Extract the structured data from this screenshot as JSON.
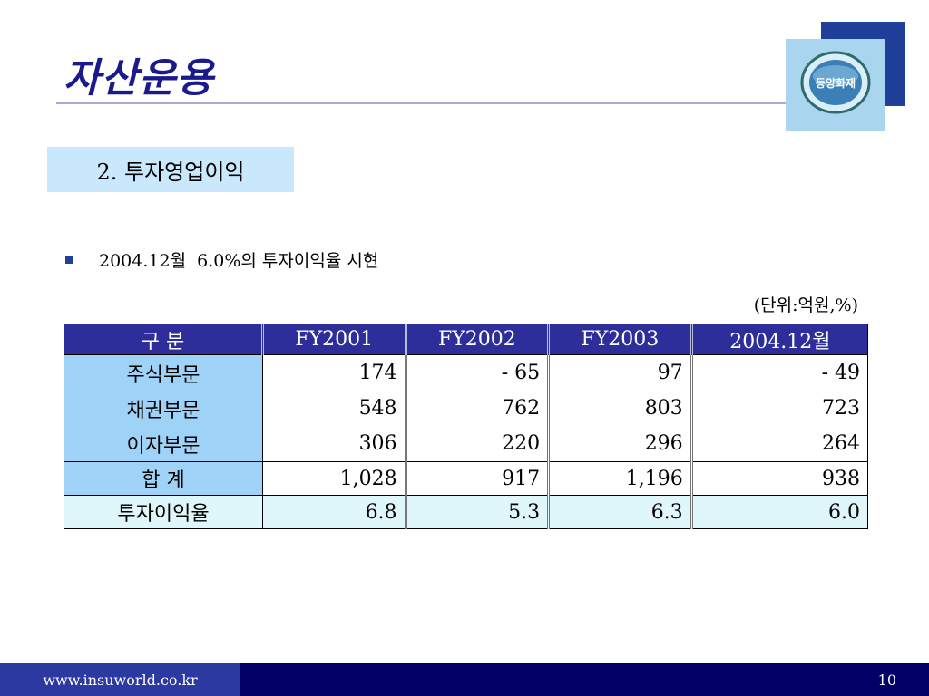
{
  "slide": {
    "title": "자산운용",
    "logo_text": "동양화재",
    "section_heading": "2. 투자영업이익",
    "bullet": "2004.12월  6.0%의 투자이익율 시현",
    "unit_note": "(단위:억원,%)"
  },
  "table": {
    "headers": [
      "구 분",
      "FY2001",
      "FY2002",
      "FY2003",
      "2004.12월"
    ],
    "rows": [
      {
        "label": "주식부문",
        "values": [
          "174",
          "- 65",
          "97",
          "- 49"
        ]
      },
      {
        "label": "채권부문",
        "values": [
          "548",
          "762",
          "803",
          "723"
        ]
      },
      {
        "label": "이자부문",
        "values": [
          "306",
          "220",
          "296",
          "264"
        ]
      },
      {
        "label": "합 계",
        "values": [
          "1,028",
          "917",
          "1,196",
          "938"
        ]
      },
      {
        "label": "투자이익율",
        "values": [
          "6.8",
          "5.3",
          "6.3",
          "6.0"
        ]
      }
    ]
  },
  "footer": {
    "url": "www.insuworld.co.kr",
    "page_number": "10"
  },
  "colors": {
    "title": "#1a1a8c",
    "header_bg": "#2e2e9a",
    "label_bg": "#9ed2f7",
    "footer_bg": "#000066"
  }
}
